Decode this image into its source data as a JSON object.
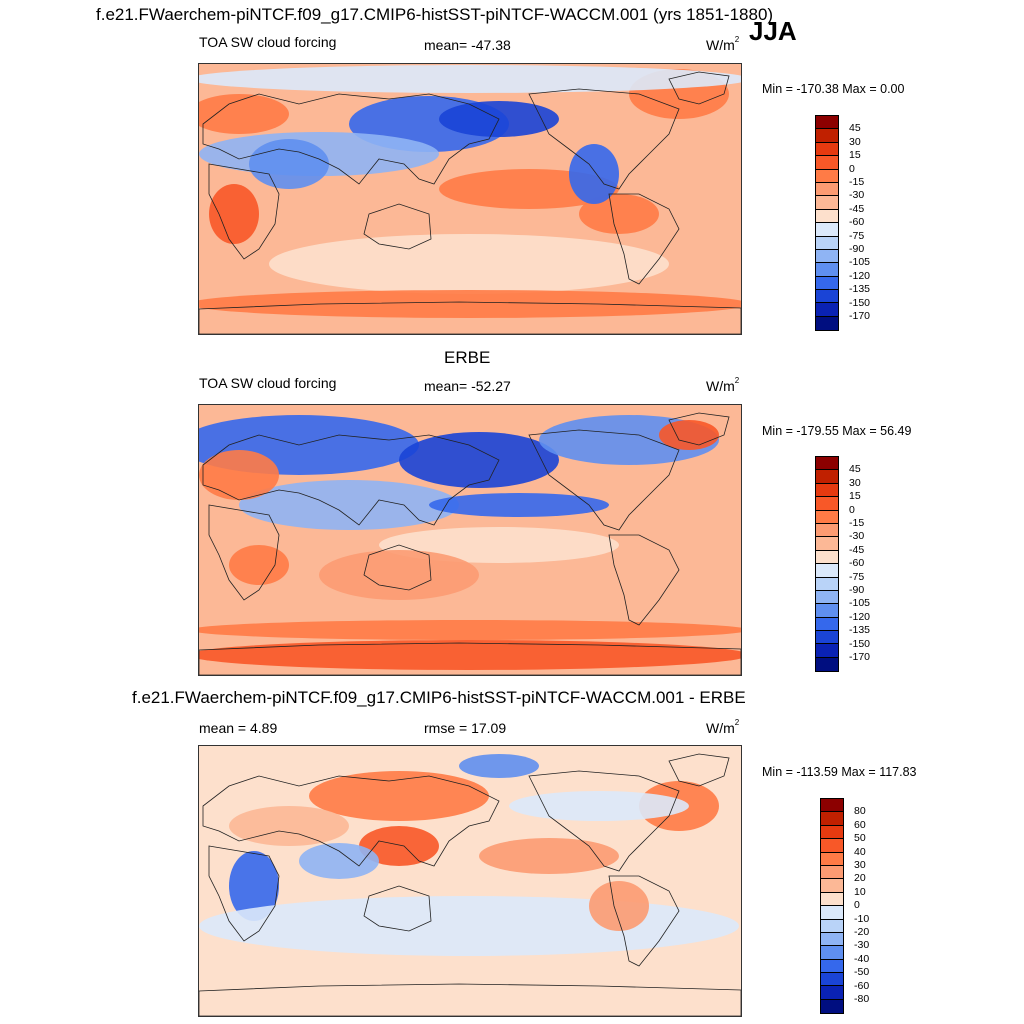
{
  "header": {
    "main_title": "f.e21.FWaerchem-piNTCF.f09_g17.CMIP6-histSST-piNTCF-WACCM.001 (yrs 1851-1880)",
    "season": "JJA"
  },
  "panel1": {
    "left_label": "TOA SW cloud forcing",
    "mean_text": "mean= -47.38",
    "units": "W/m",
    "units_sup": "2",
    "minmax_text": "Min = -170.38 Max =   0.00"
  },
  "panel2": {
    "title": "ERBE",
    "left_label": "TOA SW cloud forcing",
    "mean_text": "mean= -52.27",
    "units": "W/m",
    "units_sup": "2",
    "minmax_text": "Min = -179.55 Max =  56.49"
  },
  "panel3": {
    "title": "f.e21.FWaerchem-piNTCF.f09_g17.CMIP6-histSST-piNTCF-WACCM.001 - ERBE",
    "left_label": "mean =   4.89",
    "mean_text": "rmse =  17.09",
    "units": "W/m",
    "units_sup": "2",
    "minmax_text": "Min = -113.59 Max = 117.83"
  },
  "chart_data": [
    {
      "type": "heatmap",
      "title": "TOA SW cloud forcing",
      "units": "W/m2",
      "mean": -47.38,
      "min": -170.38,
      "max": 0.0,
      "colorbar_levels": [
        "45",
        "30",
        "15",
        "0",
        "-15",
        "-30",
        "-45",
        "-60",
        "-75",
        "-90",
        "-105",
        "-120",
        "-135",
        "-150",
        "-170"
      ],
      "colorbar_colors": [
        "#8c0000",
        "#c02000",
        "#e63a10",
        "#f85828",
        "#ff7b46",
        "#fc9b72",
        "#fcb896",
        "#fde0cc",
        "#dbe9fb",
        "#b9d3f8",
        "#8fb4f4",
        "#5f8ff0",
        "#3568ec",
        "#1a44d6",
        "#0a22b4",
        "#000e80"
      ]
    },
    {
      "type": "heatmap",
      "title": "ERBE",
      "units": "W/m2",
      "mean": -52.27,
      "min": -179.55,
      "max": 56.49,
      "colorbar_levels": [
        "45",
        "30",
        "15",
        "0",
        "-15",
        "-30",
        "-45",
        "-60",
        "-75",
        "-90",
        "-105",
        "-120",
        "-135",
        "-150",
        "-170"
      ],
      "colorbar_colors": [
        "#8c0000",
        "#c02000",
        "#e63a10",
        "#f85828",
        "#ff7b46",
        "#fc9b72",
        "#fcb896",
        "#fde0cc",
        "#dbe9fb",
        "#b9d3f8",
        "#8fb4f4",
        "#5f8ff0",
        "#3568ec",
        "#1a44d6",
        "#0a22b4",
        "#000e80"
      ]
    },
    {
      "type": "heatmap",
      "title": "f.e21.FWaerchem-piNTCF.f09_g17.CMIP6-histSST-piNTCF-WACCM.001 - ERBE",
      "units": "W/m2",
      "mean": 4.89,
      "rmse": 17.09,
      "min": -113.59,
      "max": 117.83,
      "colorbar_levels": [
        "80",
        "60",
        "50",
        "40",
        "30",
        "20",
        "10",
        "0",
        "-10",
        "-20",
        "-30",
        "-40",
        "-50",
        "-60",
        "-80"
      ],
      "colorbar_colors": [
        "#8c0000",
        "#c02000",
        "#e63a10",
        "#f85828",
        "#ff7b46",
        "#fc9b72",
        "#fcb896",
        "#fde0cc",
        "#dbe9fb",
        "#b9d3f8",
        "#8fb4f4",
        "#5f8ff0",
        "#3568ec",
        "#1a44d6",
        "#0a22b4",
        "#000e80"
      ]
    }
  ]
}
